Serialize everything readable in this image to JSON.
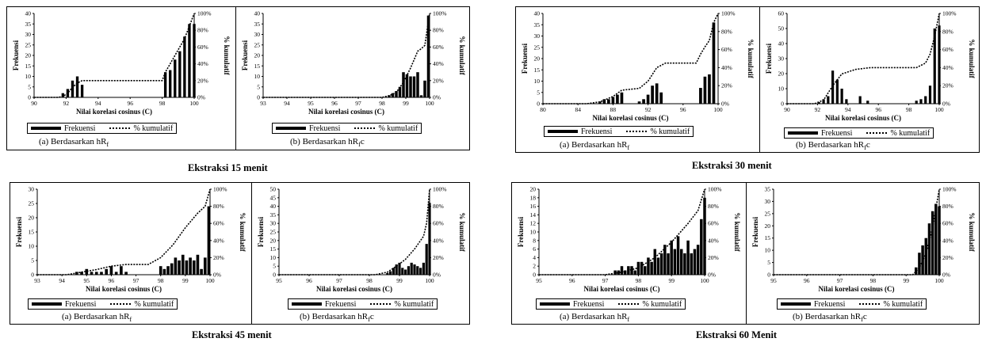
{
  "common": {
    "xlabel": "Nilai korelasi cosinus (C)",
    "ylabel_left": "Frekuensi",
    "ylabel_right": "% kumulatif",
    "legend_bar": "Frekuensi",
    "legend_line": "% kumulatif",
    "pct_ticks": [
      "0%",
      "20%",
      "40%",
      "60%",
      "80%",
      "100%"
    ]
  },
  "groups": [
    {
      "title": "Ekstraksi 15 menit",
      "panels": [
        {
          "caption_prefix": "(a)  Berdasarkan hR",
          "caption_sub": "f",
          "caption_suffix": ""
        },
        {
          "caption_prefix": "(b) Berdasarkan hR",
          "caption_sub": "f",
          "caption_suffix": "c"
        }
      ]
    },
    {
      "title": "Ekstraksi 30 menit",
      "panels": [
        {
          "caption_prefix": "(a)  Berdasarkan hR",
          "caption_sub": "f",
          "caption_suffix": ""
        },
        {
          "caption_prefix": "(b) Berdasarkan hR",
          "caption_sub": "f",
          "caption_suffix": "c"
        }
      ]
    },
    {
      "title": "Ekstraksi 45 menit",
      "panels": [
        {
          "caption_prefix": "(a)  Berdasarkan hR",
          "caption_sub": "f",
          "caption_suffix": ""
        },
        {
          "caption_prefix": "(b) Berdasarkan hR",
          "caption_sub": "f",
          "caption_suffix": "c"
        }
      ]
    },
    {
      "title": "Ekstraksi 60 Menit",
      "panels": [
        {
          "caption_prefix": "(a)  Berdasarkan hR",
          "caption_sub": "f",
          "caption_suffix": ""
        },
        {
          "caption_prefix": "(b) Berdasarkan hR",
          "caption_sub": "f",
          "caption_suffix": "c"
        }
      ]
    }
  ],
  "chart_data": [
    {
      "panel": "15a",
      "type": "bar",
      "xlabel": "Nilai korelasi cosinus (C)",
      "ylabel": "Frekuensi",
      "y2label": "% kumulatif",
      "xticks": [
        90,
        92,
        94,
        96,
        98,
        100
      ],
      "xlim": [
        90,
        100
      ],
      "ylim": [
        0,
        40
      ],
      "yticks": [
        0,
        5,
        10,
        15,
        20,
        25,
        30,
        35,
        40
      ],
      "y2lim": [
        0,
        100
      ],
      "series": [
        {
          "name": "Frekuensi",
          "x": [
            91.8,
            92.1,
            92.4,
            92.7,
            93.0,
            98.2,
            98.5,
            98.8,
            99.1,
            99.4,
            99.7,
            100.0
          ],
          "values": [
            2,
            4,
            8,
            10,
            6,
            12,
            13,
            18,
            22,
            29,
            35,
            35
          ]
        },
        {
          "name": "% kumulatif",
          "x": [
            90,
            91.5,
            91.8,
            92.1,
            92.4,
            92.7,
            93.0,
            98.0,
            98.2,
            98.5,
            98.8,
            99.1,
            99.4,
            99.7,
            100.0
          ],
          "values": [
            0,
            0,
            1,
            5,
            12,
            17,
            20,
            20,
            30,
            40,
            50,
            60,
            70,
            85,
            100
          ]
        }
      ]
    },
    {
      "panel": "15b",
      "type": "bar",
      "xlabel": "Nilai korelasi cosinus (C)",
      "ylabel": "Frekuensi",
      "y2label": "% kumulatif",
      "xticks": [
        93,
        94,
        95,
        96,
        97,
        98,
        99,
        100
      ],
      "xlim": [
        93,
        100
      ],
      "ylim": [
        0,
        40
      ],
      "yticks": [
        0,
        5,
        10,
        15,
        20,
        25,
        30,
        35,
        40
      ],
      "y2lim": [
        0,
        100
      ],
      "series": [
        {
          "name": "Frekuensi",
          "x": [
            98.3,
            98.45,
            98.6,
            98.75,
            98.9,
            99.05,
            99.2,
            99.35,
            99.5,
            99.65,
            99.8,
            99.95
          ],
          "values": [
            1,
            2,
            3,
            5,
            12,
            11,
            10,
            10,
            12,
            1,
            8,
            39
          ]
        },
        {
          "name": "% kumulatif",
          "x": [
            93,
            98.0,
            98.3,
            98.6,
            98.9,
            99.2,
            99.5,
            99.65,
            99.8,
            100.0
          ],
          "values": [
            0,
            0,
            2,
            6,
            18,
            35,
            55,
            58,
            62,
            100
          ]
        }
      ]
    },
    {
      "panel": "30a",
      "type": "bar",
      "xlabel": "Nilai korelasi cosinus (C)",
      "ylabel": "Frekuensi",
      "y2label": "% kumulatif",
      "xticks": [
        80,
        84,
        88,
        92,
        96,
        100
      ],
      "xlim": [
        80,
        100
      ],
      "ylim": [
        0,
        40
      ],
      "yticks": [
        0,
        5,
        10,
        15,
        20,
        25,
        30,
        35,
        40
      ],
      "y2lim": [
        0,
        100
      ],
      "series": [
        {
          "name": "Frekuensi",
          "x": [
            86.5,
            87.0,
            87.5,
            88.0,
            88.5,
            89.0,
            91.0,
            91.5,
            92.0,
            92.5,
            93.0,
            93.5,
            98.0,
            98.5,
            99.0,
            99.5
          ],
          "values": [
            1,
            2,
            2,
            3,
            4,
            5,
            1,
            2,
            4,
            8,
            9,
            5,
            7,
            12,
            13,
            36
          ]
        },
        {
          "name": "% kumulatif",
          "x": [
            80,
            85.0,
            86.5,
            88.0,
            89.0,
            91.0,
            92.0,
            93.0,
            94.0,
            97.5,
            98.0,
            98.5,
            99.0,
            99.5,
            100.0
          ],
          "values": [
            0,
            0,
            2,
            8,
            15,
            17,
            25,
            40,
            45,
            45,
            55,
            63,
            70,
            90,
            100
          ]
        }
      ]
    },
    {
      "panel": "30b",
      "type": "bar",
      "xlabel": "Nilai korelasi cosinus (C)",
      "ylabel": "Frekuensi",
      "y2label": "% kumulatif",
      "xticks": [
        90,
        92,
        94,
        96,
        98,
        100
      ],
      "xlim": [
        90,
        100
      ],
      "ylim": [
        0,
        60
      ],
      "yticks": [
        0,
        10,
        20,
        30,
        40,
        50,
        60
      ],
      "y2lim": [
        0,
        100
      ],
      "series": [
        {
          "name": "Frekuensi",
          "x": [
            92.1,
            92.4,
            92.7,
            93.0,
            93.3,
            93.6,
            93.9,
            94.8,
            95.3,
            98.5,
            98.8,
            99.1,
            99.4,
            99.7,
            100.0
          ],
          "values": [
            1,
            3,
            5,
            22,
            16,
            10,
            3,
            5,
            2,
            2,
            3,
            5,
            12,
            50,
            52
          ]
        },
        {
          "name": "% kumulatif",
          "x": [
            90,
            91.8,
            92.4,
            93.0,
            93.6,
            94.5,
            95.5,
            98.5,
            99.1,
            99.4,
            99.7,
            100.0
          ],
          "values": [
            0,
            0,
            4,
            20,
            33,
            38,
            40,
            40,
            45,
            55,
            75,
            100
          ]
        }
      ]
    },
    {
      "panel": "45a",
      "type": "bar",
      "xlabel": "Nilai korelasi cosinus (C)",
      "ylabel": "Frekuensi",
      "y2label": "% kumulatif",
      "xticks": [
        93,
        94,
        95,
        96,
        97,
        98,
        99,
        100
      ],
      "xlim": [
        93,
        100
      ],
      "ylim": [
        0,
        30
      ],
      "yticks": [
        0,
        5,
        10,
        15,
        20,
        25,
        30
      ],
      "y2lim": [
        0,
        100
      ],
      "series": [
        {
          "name": "Frekuensi",
          "x": [
            94.6,
            94.8,
            95.0,
            95.2,
            95.4,
            95.6,
            95.8,
            96.0,
            96.2,
            96.4,
            96.6,
            98.0,
            98.15,
            98.3,
            98.45,
            98.6,
            98.75,
            98.9,
            99.05,
            99.2,
            99.35,
            99.5,
            99.65,
            99.8,
            99.95
          ],
          "values": [
            1,
            1,
            2,
            1,
            1,
            1,
            2,
            3,
            1,
            3,
            1,
            3,
            2,
            3,
            4,
            6,
            5,
            7,
            5,
            6,
            5,
            7,
            2,
            6,
            24
          ]
        },
        {
          "name": "% kumulatif",
          "x": [
            93,
            94.2,
            94.6,
            95.4,
            96.0,
            96.6,
            97.5,
            98.0,
            98.5,
            99.0,
            99.5,
            99.8,
            100.0
          ],
          "values": [
            0,
            0,
            2,
            6,
            10,
            12,
            12,
            20,
            35,
            55,
            72,
            80,
            100
          ]
        }
      ]
    },
    {
      "panel": "45b",
      "type": "bar",
      "xlabel": "Nilai korelasi cosinus (C)",
      "ylabel": "Frekuensi",
      "y2label": "% kumulatif",
      "xticks": [
        95,
        96,
        97,
        98,
        99,
        100
      ],
      "xlim": [
        95,
        100
      ],
      "ylim": [
        0,
        50
      ],
      "yticks": [
        0,
        5,
        10,
        15,
        20,
        25,
        30,
        35,
        40,
        45,
        50
      ],
      "y2lim": [
        0,
        100
      ],
      "series": [
        {
          "name": "Frekuensi",
          "x": [
            98.6,
            98.7,
            98.8,
            98.9,
            99.0,
            99.1,
            99.2,
            99.3,
            99.4,
            99.5,
            99.6,
            99.7,
            99.8,
            99.9,
            100.0
          ],
          "values": [
            1,
            2,
            4,
            6,
            7,
            4,
            3,
            5,
            7,
            6,
            5,
            4,
            7,
            18,
            42
          ]
        },
        {
          "name": "% kumulatif",
          "x": [
            95,
            98.2,
            98.6,
            98.9,
            99.2,
            99.5,
            99.8,
            99.9,
            100.0
          ],
          "values": [
            0,
            0,
            3,
            10,
            18,
            30,
            45,
            60,
            100
          ]
        }
      ]
    },
    {
      "panel": "60a",
      "type": "bar",
      "xlabel": "Nilai korelasi cosinus (C)",
      "ylabel": "Frekuensi",
      "y2label": "% kumulatif",
      "xticks": [
        95,
        96,
        97,
        98,
        99,
        100
      ],
      "xlim": [
        95,
        100
      ],
      "ylim": [
        0,
        20
      ],
      "yticks": [
        0,
        2,
        4,
        6,
        8,
        10,
        12,
        14,
        16,
        18,
        20
      ],
      "y2lim": [
        0,
        100
      ],
      "series": [
        {
          "name": "Frekuensi",
          "x": [
            97.3,
            97.4,
            97.5,
            97.6,
            97.7,
            97.8,
            97.9,
            98.0,
            98.1,
            98.2,
            98.3,
            98.4,
            98.5,
            98.6,
            98.7,
            98.8,
            98.9,
            99.0,
            99.1,
            99.2,
            99.3,
            99.4,
            99.5,
            99.6,
            99.7,
            99.8,
            99.9,
            100.0
          ],
          "values": [
            1,
            1,
            2,
            1,
            2,
            2,
            1,
            3,
            3,
            2,
            4,
            3,
            6,
            4,
            5,
            7,
            5,
            8,
            6,
            9,
            6,
            5,
            8,
            5,
            6,
            7,
            13,
            18
          ]
        },
        {
          "name": "% kumulatif",
          "x": [
            95,
            97.0,
            97.5,
            98.0,
            98.5,
            99.0,
            99.5,
            99.8,
            100.0
          ],
          "values": [
            0,
            0,
            3,
            8,
            20,
            38,
            60,
            75,
            100
          ]
        }
      ]
    },
    {
      "panel": "60b",
      "type": "bar",
      "xlabel": "Nilai korelasi cosinus (C)",
      "ylabel": "Frekuensi",
      "y2label": "% kumulatif",
      "xticks": [
        95,
        96,
        97,
        98,
        99,
        100
      ],
      "xlim": [
        95,
        100
      ],
      "ylim": [
        0,
        35
      ],
      "yticks": [
        0,
        5,
        10,
        15,
        20,
        25,
        30,
        35
      ],
      "y2lim": [
        0,
        100
      ],
      "series": [
        {
          "name": "Frekuensi",
          "x": [
            99.3,
            99.4,
            99.5,
            99.6,
            99.7,
            99.8,
            99.9,
            100.0
          ],
          "values": [
            3,
            9,
            12,
            15,
            21,
            26,
            29,
            28
          ]
        },
        {
          "name": "% kumulatif",
          "x": [
            95,
            99.2,
            99.4,
            99.6,
            99.8,
            100.0
          ],
          "values": [
            0,
            0,
            8,
            25,
            55,
            100
          ]
        }
      ]
    }
  ]
}
